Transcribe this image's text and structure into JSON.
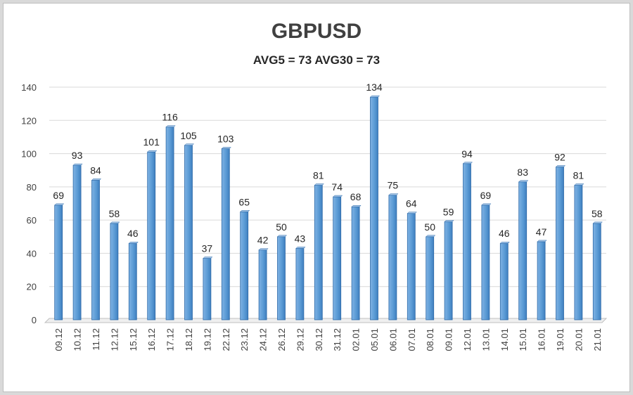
{
  "chart_data": {
    "type": "bar",
    "title": "GBPUSD",
    "subtitle": "AVG5 = 73 AVG30 = 73",
    "xlabel": "",
    "ylabel": "",
    "ylim": [
      0,
      140
    ],
    "yticks": [
      0,
      20,
      40,
      60,
      80,
      100,
      120,
      140
    ],
    "grid": true,
    "legend": "none",
    "bar_color": "#5b9bd5",
    "categories": [
      "09.12",
      "10.12",
      "11.12",
      "12.12",
      "15.12",
      "16.12",
      "17.12",
      "18.12",
      "19.12",
      "22.12",
      "23.12",
      "24.12",
      "26.12",
      "29.12",
      "30.12",
      "31.12",
      "02.01",
      "05.01",
      "06.01",
      "07.01",
      "08.01",
      "09.01",
      "12.01",
      "13.01",
      "14.01",
      "15.01",
      "16.01",
      "19.01",
      "20.01",
      "21.01"
    ],
    "values": [
      69,
      93,
      84,
      58,
      46,
      101,
      116,
      105,
      37,
      103,
      65,
      42,
      50,
      43,
      81,
      74,
      68,
      134,
      75,
      64,
      50,
      59,
      94,
      69,
      46,
      83,
      47,
      92,
      81,
      58
    ]
  }
}
